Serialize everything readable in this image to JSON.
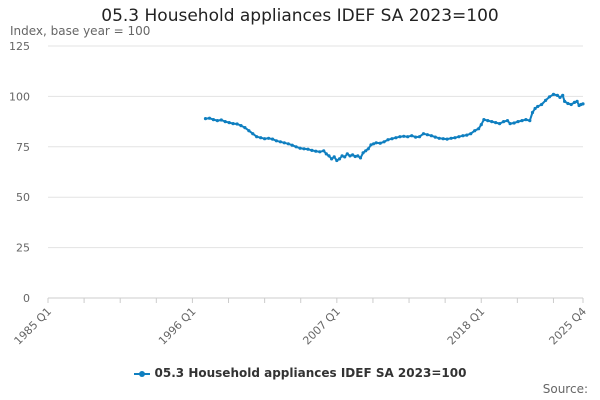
{
  "chart_data": {
    "type": "line",
    "title": "05.3 Household appliances IDEF SA 2023=100",
    "ylabel": "Index, base year = 100",
    "xlabel": "",
    "ylim": [
      0,
      125
    ],
    "yticks": [
      0,
      25,
      50,
      75,
      100,
      125
    ],
    "xlim": [
      1985,
      2025.75
    ],
    "xticks": [
      {
        "label": "1985 Q1",
        "x": 1985
      },
      {
        "label": "1996 Q1",
        "x": 1996
      },
      {
        "label": "2007 Q1",
        "x": 2007
      },
      {
        "label": "2018 Q1",
        "x": 2018
      },
      {
        "label": "2025 Q4",
        "x": 2025.75
      }
    ],
    "minor_xticks": [
      1987.75,
      1990.5,
      1993.25,
      1998.75,
      2001.5,
      2004.25,
      2009.75,
      2012.5,
      2015.25,
      2020.75,
      2023.5
    ],
    "grid": true,
    "legend_position": "bottom",
    "series": [
      {
        "name": "05.3 Household appliances IDEF SA 2023=100",
        "color": "#0f7fc0",
        "points": [
          [
            1997.0,
            89
          ],
          [
            1997.3,
            89.2
          ],
          [
            1997.6,
            88.5
          ],
          [
            1997.9,
            88
          ],
          [
            1998.2,
            88.3
          ],
          [
            1998.5,
            87.5
          ],
          [
            1998.8,
            87
          ],
          [
            1999.1,
            86.5
          ],
          [
            1999.4,
            86.3
          ],
          [
            1999.7,
            85.5
          ],
          [
            2000.0,
            84.5
          ],
          [
            2000.3,
            83
          ],
          [
            2000.6,
            81.5
          ],
          [
            2000.9,
            80
          ],
          [
            2001.2,
            79.5
          ],
          [
            2001.5,
            79
          ],
          [
            2001.8,
            79.2
          ],
          [
            2002.1,
            78.8
          ],
          [
            2002.4,
            78
          ],
          [
            2002.7,
            77.5
          ],
          [
            2003.0,
            77
          ],
          [
            2003.3,
            76.5
          ],
          [
            2003.6,
            75.8
          ],
          [
            2003.9,
            75
          ],
          [
            2004.2,
            74.3
          ],
          [
            2004.5,
            74
          ],
          [
            2004.8,
            73.8
          ],
          [
            2005.1,
            73.2
          ],
          [
            2005.4,
            72.8
          ],
          [
            2005.7,
            72.5
          ],
          [
            2006.0,
            73
          ],
          [
            2006.2,
            71.5
          ],
          [
            2006.4,
            70.5
          ],
          [
            2006.6,
            69
          ],
          [
            2006.8,
            70
          ],
          [
            2007.0,
            68.2
          ],
          [
            2007.2,
            69
          ],
          [
            2007.4,
            70.5
          ],
          [
            2007.6,
            70
          ],
          [
            2007.8,
            71.5
          ],
          [
            2008.0,
            70.5
          ],
          [
            2008.2,
            71
          ],
          [
            2008.4,
            70.2
          ],
          [
            2008.6,
            70.5
          ],
          [
            2008.8,
            69.5
          ],
          [
            2009.0,
            72
          ],
          [
            2009.2,
            73
          ],
          [
            2009.4,
            74
          ],
          [
            2009.6,
            76
          ],
          [
            2009.8,
            76.5
          ],
          [
            2010.0,
            77
          ],
          [
            2010.3,
            76.8
          ],
          [
            2010.6,
            77.5
          ],
          [
            2010.9,
            78.5
          ],
          [
            2011.2,
            79
          ],
          [
            2011.5,
            79.5
          ],
          [
            2011.8,
            80
          ],
          [
            2012.1,
            80.2
          ],
          [
            2012.4,
            80
          ],
          [
            2012.7,
            80.5
          ],
          [
            2013.0,
            79.8
          ],
          [
            2013.3,
            80
          ],
          [
            2013.6,
            81.5
          ],
          [
            2013.9,
            81
          ],
          [
            2014.2,
            80.5
          ],
          [
            2014.5,
            79.8
          ],
          [
            2014.8,
            79.2
          ],
          [
            2015.1,
            79
          ],
          [
            2015.4,
            78.8
          ],
          [
            2015.7,
            79.2
          ],
          [
            2016.0,
            79.5
          ],
          [
            2016.3,
            80
          ],
          [
            2016.6,
            80.5
          ],
          [
            2016.9,
            80.8
          ],
          [
            2017.2,
            81.5
          ],
          [
            2017.5,
            83
          ],
          [
            2017.8,
            84
          ],
          [
            2018.0,
            86
          ],
          [
            2018.2,
            88.5
          ],
          [
            2018.5,
            88
          ],
          [
            2018.8,
            87.5
          ],
          [
            2019.1,
            87
          ],
          [
            2019.4,
            86.5
          ],
          [
            2019.7,
            87.5
          ],
          [
            2020.0,
            88
          ],
          [
            2020.2,
            86.5
          ],
          [
            2020.5,
            86.8
          ],
          [
            2020.8,
            87.5
          ],
          [
            2021.1,
            88
          ],
          [
            2021.4,
            88.5
          ],
          [
            2021.7,
            88
          ],
          [
            2021.9,
            92
          ],
          [
            2022.1,
            94
          ],
          [
            2022.3,
            95
          ],
          [
            2022.6,
            96
          ],
          [
            2022.9,
            98
          ],
          [
            2023.2,
            99.8
          ],
          [
            2023.5,
            101
          ],
          [
            2023.8,
            100.5
          ],
          [
            2024.0,
            99.5
          ],
          [
            2024.2,
            100.5
          ],
          [
            2024.35,
            97.5
          ],
          [
            2024.6,
            96.5
          ],
          [
            2024.85,
            96
          ],
          [
            2025.1,
            97
          ],
          [
            2025.3,
            97.5
          ],
          [
            2025.45,
            95.5
          ],
          [
            2025.6,
            96
          ],
          [
            2025.75,
            96.3
          ]
        ]
      }
    ]
  },
  "footer": {
    "source_label": "Source:"
  }
}
